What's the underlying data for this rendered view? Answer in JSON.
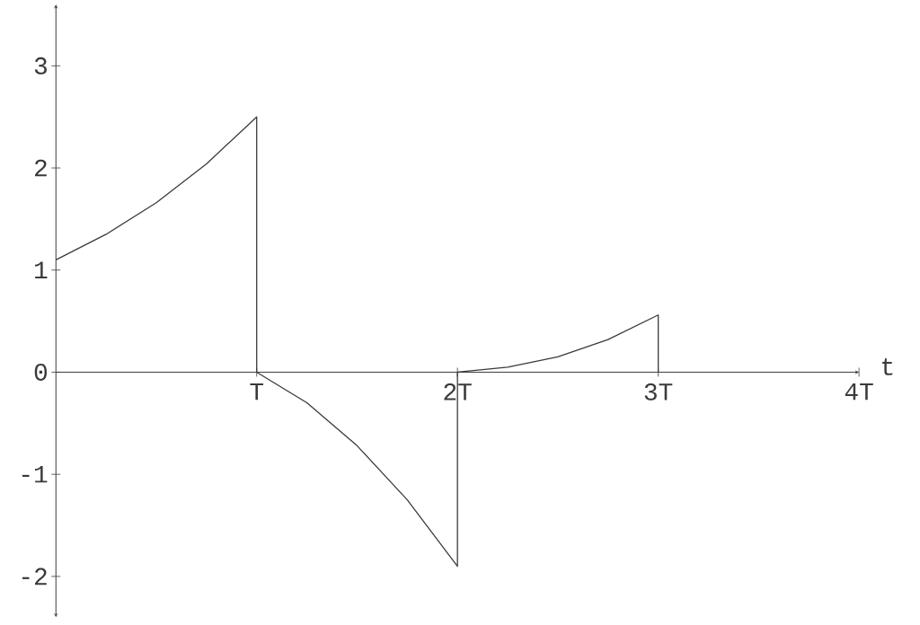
{
  "chart_data": {
    "type": "line",
    "xlabel": "t",
    "x": [
      0,
      0.25,
      0.5,
      0.75,
      1,
      1,
      1.25,
      1.5,
      1.75,
      2,
      2,
      2.25,
      2.5,
      2.75,
      3,
      3
    ],
    "values": [
      1.1,
      1.35,
      1.66,
      2.04,
      2.5,
      0,
      -0.3,
      -0.72,
      -1.25,
      -1.9,
      0,
      0.05,
      0.15,
      0.32,
      0.56,
      0
    ],
    "color": "#3a3a3a",
    "xlim": [
      0,
      4
    ],
    "ylim": [
      -2.4,
      3.6
    ],
    "xticks": [
      {
        "value": 1,
        "label": "T"
      },
      {
        "value": 2,
        "label": "2T"
      },
      {
        "value": 3,
        "label": "3T"
      },
      {
        "value": 4,
        "label": "4T"
      }
    ],
    "yticks": [
      -2,
      -1,
      0,
      1,
      2,
      3
    ],
    "grid": false,
    "marker": "none",
    "line_style": "solid"
  }
}
